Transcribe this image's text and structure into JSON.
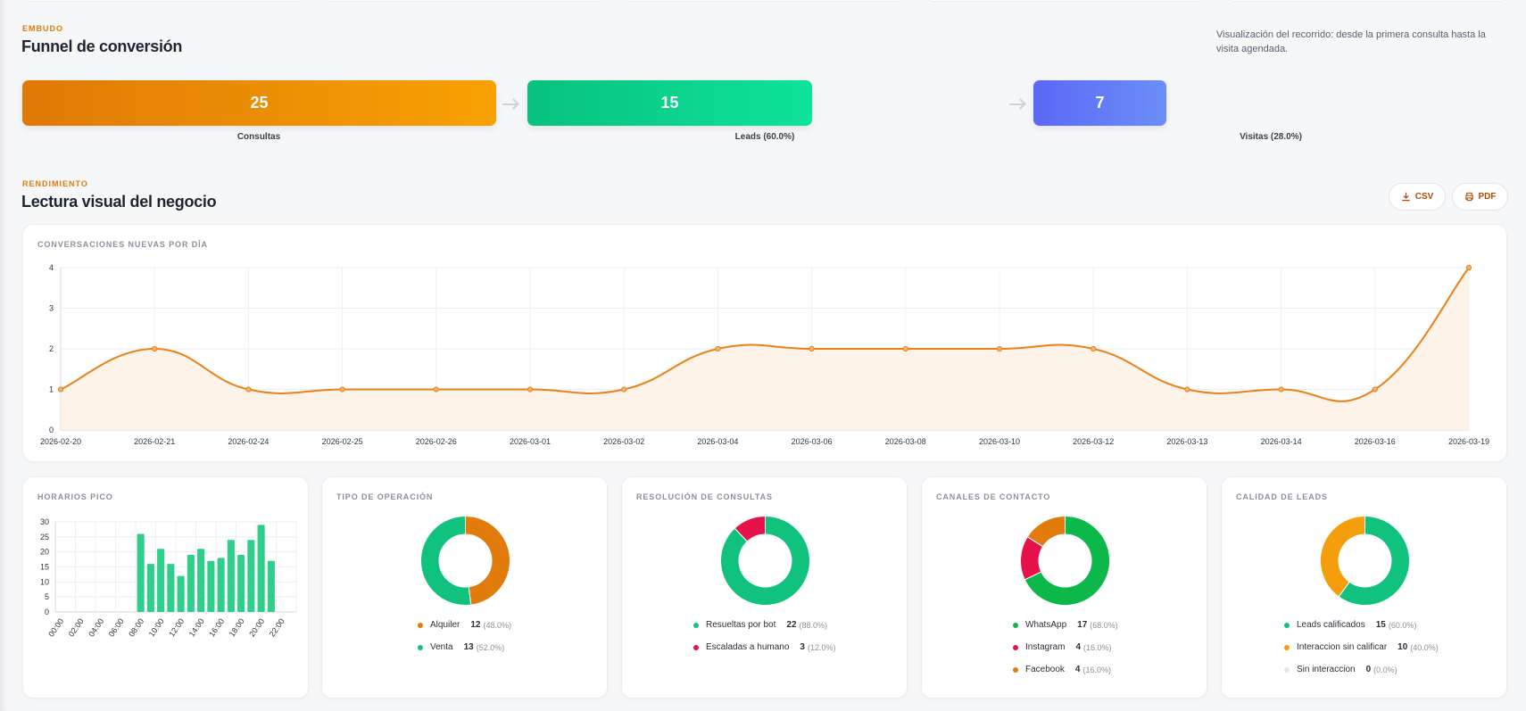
{
  "colors": {
    "accent": "#e07b0c",
    "green": "#10c27d",
    "indigo": "#5b67f6",
    "red": "#e8124a",
    "orange": "#f59e0b",
    "whatsapp": "#0db84a",
    "grey": "#e5e7eb"
  },
  "funnel": {
    "eyebrow": "EMBUDO",
    "title": "Funnel de conversión",
    "description": "Visualización del recorrido: desde la primera consulta hasta la visita agendada.",
    "stages": [
      {
        "value": "25",
        "label": "Consultas"
      },
      {
        "value": "15",
        "label": "Leads (60.0%)"
      },
      {
        "value": "7",
        "label": "Visitas (28.0%)"
      }
    ]
  },
  "performance": {
    "eyebrow": "RENDIMIENTO",
    "title": "Lectura visual del negocio",
    "csv_label": "CSV",
    "pdf_label": "PDF"
  },
  "conversations": {
    "title": "CONVERSACIONES NUEVAS POR DÍA"
  },
  "peak_hours": {
    "title": "HORARIOS PICO"
  },
  "operation": {
    "title": "TIPO DE OPERACIÓN",
    "items": [
      {
        "label": "Alquiler",
        "count": "12",
        "pct": "(48.0%)",
        "color": "#e07b0c"
      },
      {
        "label": "Venta",
        "count": "13",
        "pct": "(52.0%)",
        "color": "#10c27d"
      }
    ]
  },
  "resolution": {
    "title": "RESOLUCIÓN DE CONSULTAS",
    "items": [
      {
        "label": "Resueltas por bot",
        "count": "22",
        "pct": "(88.0%)",
        "color": "#10c27d"
      },
      {
        "label": "Escaladas a humano",
        "count": "3",
        "pct": "(12.0%)",
        "color": "#e8124a"
      }
    ]
  },
  "channels": {
    "title": "CANALES DE CONTACTO",
    "items": [
      {
        "label": "WhatsApp",
        "count": "17",
        "pct": "(68.0%)",
        "color": "#0db84a"
      },
      {
        "label": "Instagram",
        "count": "4",
        "pct": "(16.0%)",
        "color": "#e8124a"
      },
      {
        "label": "Facebook",
        "count": "4",
        "pct": "(16.0%)",
        "color": "#e07b0c"
      }
    ]
  },
  "quality": {
    "title": "CALIDAD DE LEADS",
    "items": [
      {
        "label": "Leads calificados",
        "count": "15",
        "pct": "(60.0%)",
        "color": "#10c27d"
      },
      {
        "label": "Interaccion sin calificar",
        "count": "10",
        "pct": "(40.0%)",
        "color": "#f59e0b"
      },
      {
        "label": "Sin interaccion",
        "count": "0",
        "pct": "(0.0%)",
        "color": "#e5e7eb"
      }
    ]
  },
  "chart_data": [
    {
      "type": "area",
      "title": "CONVERSACIONES NUEVAS POR DÍA",
      "x": [
        "2026-02-20",
        "2026-02-21",
        "2026-02-24",
        "2026-02-25",
        "2026-02-26",
        "2026-03-01",
        "2026-03-02",
        "2026-03-04",
        "2026-03-06",
        "2026-03-08",
        "2026-03-10",
        "2026-03-12",
        "2026-03-13",
        "2026-03-14",
        "2026-03-16",
        "2026-03-19"
      ],
      "values": [
        1,
        2,
        1,
        1,
        1,
        1,
        1,
        2,
        2,
        2,
        2,
        2,
        1,
        1,
        1,
        4
      ],
      "yticks": [
        0,
        1,
        2,
        3,
        4
      ],
      "ylim": [
        0,
        4
      ],
      "grid": true,
      "color": "#e8831c"
    },
    {
      "type": "bar",
      "title": "HORARIOS PICO",
      "categories": [
        "00:00",
        "01:00",
        "02:00",
        "03:00",
        "04:00",
        "05:00",
        "06:00",
        "07:00",
        "08:00",
        "09:00",
        "10:00",
        "11:00",
        "12:00",
        "13:00",
        "14:00",
        "15:00",
        "16:00",
        "17:00",
        "18:00",
        "19:00",
        "20:00",
        "21:00",
        "22:00",
        "23:00"
      ],
      "tick_labels": [
        "00:00",
        "02:00",
        "04:00",
        "06:00",
        "08:00",
        "10:00",
        "12:00",
        "14:00",
        "16:00",
        "18:00",
        "20:00",
        "22:00"
      ],
      "values": [
        0,
        0,
        0,
        0,
        0,
        0,
        0,
        0,
        26,
        16,
        21,
        16,
        12,
        19,
        21,
        17,
        18,
        24,
        19,
        24,
        29,
        17,
        0,
        0
      ],
      "yticks": [
        0,
        5,
        10,
        15,
        20,
        25,
        30
      ],
      "ylim": [
        0,
        30
      ],
      "grid": true,
      "color": "#2fcf8b"
    },
    {
      "type": "pie",
      "title": "TIPO DE OPERACIÓN",
      "categories": [
        "Alquiler",
        "Venta"
      ],
      "values": [
        12,
        13
      ]
    },
    {
      "type": "pie",
      "title": "RESOLUCIÓN DE CONSULTAS",
      "categories": [
        "Resueltas por bot",
        "Escaladas a humano"
      ],
      "values": [
        22,
        3
      ]
    },
    {
      "type": "pie",
      "title": "CANALES DE CONTACTO",
      "categories": [
        "WhatsApp",
        "Instagram",
        "Facebook"
      ],
      "values": [
        17,
        4,
        4
      ]
    },
    {
      "type": "pie",
      "title": "CALIDAD DE LEADS",
      "categories": [
        "Leads calificados",
        "Interaccion sin calificar",
        "Sin interaccion"
      ],
      "values": [
        15,
        10,
        0
      ]
    }
  ]
}
